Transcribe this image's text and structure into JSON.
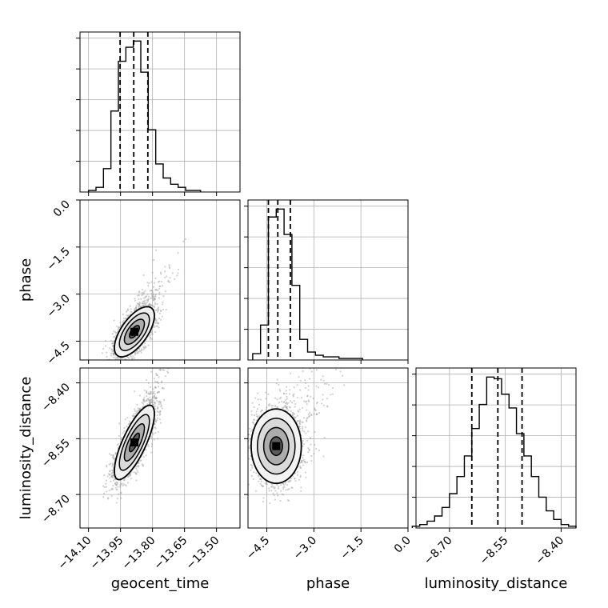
{
  "chart_data": {
    "type": "corner",
    "parameters": [
      "geocent_time",
      "phase",
      "luminosity_distance"
    ],
    "axes": {
      "geocent_time": {
        "range": [
          -14.14,
          -13.39
        ],
        "ticks": [
          "−14.10",
          "−13.95",
          "−13.80",
          "−13.65",
          "−13.50"
        ],
        "tick_values": [
          -14.1,
          -13.95,
          -13.8,
          -13.65,
          -13.5
        ]
      },
      "phase": {
        "range": [
          -5.1,
          0.0
        ],
        "ticks": [
          "−4.5",
          "−3.0",
          "−1.5",
          "0.0"
        ],
        "tick_values": [
          -4.5,
          -3.0,
          -1.5,
          0.0
        ]
      },
      "luminosity_distance": {
        "range": [
          -8.79,
          -8.36
        ],
        "ticks": [
          "−8.70",
          "−8.55",
          "−8.40"
        ],
        "tick_values": [
          -8.7,
          -8.55,
          -8.4
        ]
      }
    },
    "grid": true,
    "histograms": [
      {
        "parameter": "geocent_time",
        "bin_edges": [
          -14.1,
          -14.065,
          -14.03,
          -13.995,
          -13.96,
          -13.925,
          -13.89,
          -13.855,
          -13.82,
          -13.785,
          -13.75,
          -13.715,
          -13.68,
          -13.645,
          -13.61,
          -13.575
        ],
        "counts": [
          1,
          3,
          15,
          52,
          84,
          93,
          97,
          77,
          40,
          18,
          9,
          5,
          3,
          1,
          1
        ],
        "quantiles": [
          -13.952,
          -13.888,
          -13.822
        ]
      },
      {
        "parameter": "phase",
        "bin_edges": [
          -4.95,
          -4.7,
          -4.45,
          -4.2,
          -3.95,
          -3.7,
          -3.45,
          -3.2,
          -2.95,
          -2.7,
          -2.45,
          -2.2,
          -1.95,
          -1.7,
          -1.45
        ],
        "counts": [
          4,
          22,
          90,
          95,
          79,
          47,
          13,
          5,
          3,
          2,
          2,
          1,
          1,
          1
        ],
        "quantiles": [
          -4.45,
          -4.15,
          -3.75
        ]
      },
      {
        "parameter": "luminosity_distance",
        "bin_edges": [
          -8.8,
          -8.78,
          -8.76,
          -8.74,
          -8.72,
          -8.7,
          -8.68,
          -8.66,
          -8.64,
          -8.62,
          -8.6,
          -8.58,
          -8.56,
          -8.54,
          -8.52,
          -8.5,
          -8.48,
          -8.46,
          -8.44,
          -8.42,
          -8.4,
          -8.38,
          -8.36
        ],
        "counts": [
          1,
          2,
          4,
          7,
          12,
          20,
          30,
          42,
          58,
          72,
          88,
          87,
          78,
          70,
          55,
          42,
          30,
          18,
          10,
          5,
          2,
          1
        ],
        "quantiles": [
          -8.64,
          -8.57,
          -8.505
        ]
      }
    ],
    "contours_2d": [
      {
        "x": "geocent_time",
        "y": "phase",
        "center": [
          -13.885,
          -4.2
        ],
        "covariance": [
          [
            0.0022,
            0.012
          ],
          [
            0.012,
            0.16
          ]
        ],
        "levels_sigma": [
          0.5,
          1.0,
          1.5,
          2.0
        ]
      },
      {
        "x": "geocent_time",
        "y": "luminosity_distance",
        "center": [
          -13.885,
          -8.56
        ],
        "covariance": [
          [
            0.0022,
            0.0018
          ],
          [
            0.0018,
            0.0025
          ]
        ],
        "levels_sigma": [
          0.5,
          1.0,
          1.5,
          2.0
        ]
      },
      {
        "x": "phase",
        "y": "luminosity_distance",
        "center": [
          -4.2,
          -8.57
        ],
        "covariance": [
          [
            0.16,
            0.0
          ],
          [
            0.0,
            0.0025
          ]
        ],
        "levels_sigma": [
          0.5,
          1.0,
          1.5,
          2.0
        ]
      }
    ],
    "colors": {
      "line": "#000000",
      "grid": "#b0b0b0",
      "points": "#9a9a9a"
    }
  }
}
